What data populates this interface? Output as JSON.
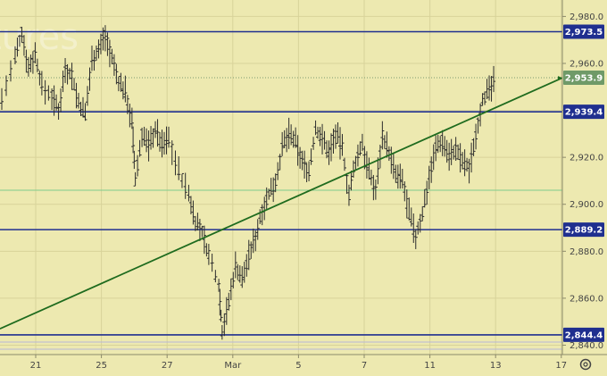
{
  "chart_data": {
    "type": "candlestick",
    "watermark": "tures",
    "y_ticks": [
      "2,980.0",
      "2,960.0",
      "2,940.0",
      "2,920.0",
      "2,900.0",
      "2,880.0",
      "2,860.0",
      "2,840.0"
    ],
    "y_tick_values": [
      2980,
      2960,
      2940,
      2920,
      2900,
      2880,
      2860,
      2840
    ],
    "x_ticks": [
      "21",
      "25",
      "27",
      "Mar",
      "5",
      "7",
      "11",
      "13",
      "17"
    ],
    "x_tick_positions": [
      2,
      4,
      6,
      8,
      10,
      12,
      14,
      16,
      18
    ],
    "ylim": [
      2836,
      2987
    ],
    "xlim": [
      0,
      19
    ],
    "h_levels": [
      {
        "label": "2,973.5",
        "value": 2973.5
      },
      {
        "label": "2,939.4",
        "value": 2939.4
      },
      {
        "label": "2,889.2",
        "value": 2889.2
      },
      {
        "label": "2,844.4",
        "value": 2844.4
      }
    ],
    "current_price": {
      "label": "2,953.9",
      "value": 2953.9
    },
    "green_level": 2906,
    "trendline": {
      "x0": 0,
      "y0": 2847,
      "x1": 16.8,
      "y1": 2953.9
    },
    "price_path": [
      [
        0.0,
        2945
      ],
      [
        0.4,
        2962
      ],
      [
        0.6,
        2973
      ],
      [
        0.8,
        2958
      ],
      [
        1.0,
        2964
      ],
      [
        1.2,
        2950
      ],
      [
        1.5,
        2946
      ],
      [
        1.7,
        2940
      ],
      [
        1.9,
        2958
      ],
      [
        2.1,
        2955
      ],
      [
        2.3,
        2943
      ],
      [
        2.5,
        2938
      ],
      [
        2.7,
        2962
      ],
      [
        2.9,
        2966
      ],
      [
        3.1,
        2972
      ],
      [
        3.3,
        2962
      ],
      [
        3.5,
        2952
      ],
      [
        3.7,
        2948
      ],
      [
        3.9,
        2935
      ],
      [
        4.0,
        2910
      ],
      [
        4.2,
        2930
      ],
      [
        4.4,
        2925
      ],
      [
        4.6,
        2932
      ],
      [
        4.8,
        2925
      ],
      [
        5.0,
        2928
      ],
      [
        5.3,
        2914
      ],
      [
        5.6,
        2904
      ],
      [
        5.8,
        2893
      ],
      [
        6.0,
        2888
      ],
      [
        6.2,
        2878
      ],
      [
        6.5,
        2866
      ],
      [
        6.6,
        2846
      ],
      [
        6.8,
        2858
      ],
      [
        7.0,
        2874
      ],
      [
        7.2,
        2868
      ],
      [
        7.4,
        2878
      ],
      [
        7.6,
        2886
      ],
      [
        7.8,
        2898
      ],
      [
        8.0,
        2904
      ],
      [
        8.2,
        2910
      ],
      [
        8.4,
        2924
      ],
      [
        8.6,
        2930
      ],
      [
        8.8,
        2926
      ],
      [
        9.0,
        2918
      ],
      [
        9.2,
        2914
      ],
      [
        9.4,
        2932
      ],
      [
        9.6,
        2928
      ],
      [
        9.8,
        2922
      ],
      [
        10.0,
        2930
      ],
      [
        10.2,
        2924
      ],
      [
        10.4,
        2904
      ],
      [
        10.6,
        2918
      ],
      [
        10.8,
        2926
      ],
      [
        11.0,
        2913
      ],
      [
        11.2,
        2906
      ],
      [
        11.4,
        2930
      ],
      [
        11.6,
        2922
      ],
      [
        11.8,
        2912
      ],
      [
        12.0,
        2910
      ],
      [
        12.2,
        2896
      ],
      [
        12.4,
        2886
      ],
      [
        12.6,
        2896
      ],
      [
        12.8,
        2912
      ],
      [
        13.0,
        2924
      ],
      [
        13.2,
        2927
      ],
      [
        13.4,
        2921
      ],
      [
        13.6,
        2923
      ],
      [
        13.8,
        2918
      ],
      [
        14.0,
        2915
      ],
      [
        14.2,
        2930
      ],
      [
        14.4,
        2945
      ],
      [
        14.6,
        2948
      ],
      [
        14.8,
        2953.9
      ]
    ]
  }
}
